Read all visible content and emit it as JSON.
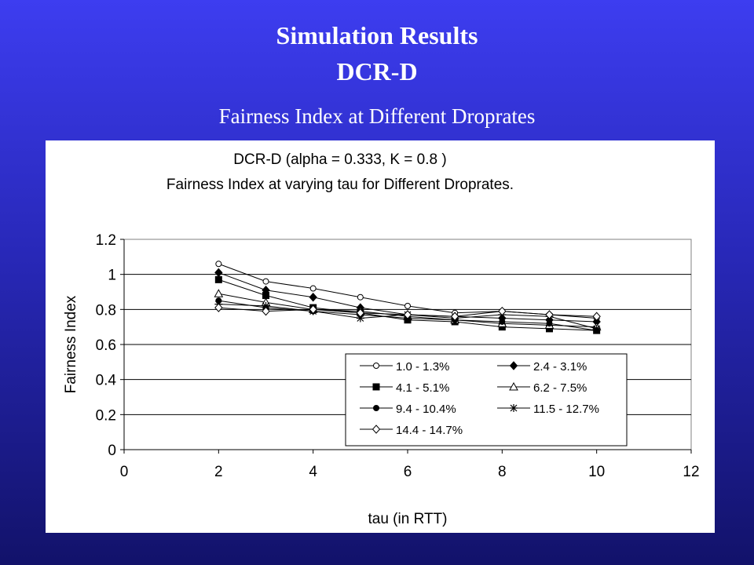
{
  "slide": {
    "title_line1": "Simulation Results",
    "title_line2": "DCR-D",
    "subtitle": "Fairness Index at Different Droprates",
    "background_color": "#2b2bc8",
    "text_color": "#ffffff"
  },
  "chart_data": {
    "type": "line",
    "title": "DCR-D (alpha = 0.333, K = 0.8 )",
    "subtitle": "Fairness Index at varying tau for Different Droprates.",
    "xlabel": "tau (in RTT)",
    "ylabel": "Fairness Index",
    "xlim": [
      0,
      12
    ],
    "ylim": [
      0,
      1.2
    ],
    "xticks": [
      "0",
      "2",
      "4",
      "6",
      "8",
      "10",
      "12"
    ],
    "yticks": [
      "0",
      "0.2",
      "0.4",
      "0.6",
      "0.8",
      "1",
      "1.2"
    ],
    "x": [
      2,
      3,
      4,
      5,
      6,
      7,
      8,
      9,
      10
    ],
    "grid": "horizontal",
    "legend_position": "bottom-right",
    "series": [
      {
        "name": "1.0 - 1.3%",
        "marker": "circle-open",
        "values": [
          1.06,
          0.96,
          0.92,
          0.87,
          0.82,
          0.78,
          0.79,
          0.77,
          0.75
        ]
      },
      {
        "name": "2.4 - 3.1%",
        "marker": "diamond-filled",
        "values": [
          1.01,
          0.91,
          0.87,
          0.81,
          0.77,
          0.76,
          0.75,
          0.74,
          0.73
        ]
      },
      {
        "name": "4.1 - 5.1%",
        "marker": "square-filled",
        "values": [
          0.97,
          0.88,
          0.81,
          0.78,
          0.74,
          0.73,
          0.7,
          0.69,
          0.68
        ]
      },
      {
        "name": "6.2 - 7.5%",
        "marker": "triangle-open",
        "values": [
          0.89,
          0.84,
          0.8,
          0.79,
          0.76,
          0.74,
          0.72,
          0.71,
          0.7
        ]
      },
      {
        "name": "9.4 - 10.4%",
        "marker": "circle-filled",
        "values": [
          0.85,
          0.81,
          0.79,
          0.77,
          0.75,
          0.74,
          0.73,
          0.72,
          0.68
        ]
      },
      {
        "name": "11.5 - 12.7%",
        "marker": "star",
        "values": [
          0.83,
          0.82,
          0.79,
          0.75,
          0.77,
          0.75,
          0.77,
          0.76,
          0.69
        ]
      },
      {
        "name": "14.4 - 14.7%",
        "marker": "diamond-open",
        "values": [
          0.81,
          0.79,
          0.8,
          0.78,
          0.77,
          0.76,
          0.79,
          0.77,
          0.76
        ]
      }
    ]
  }
}
